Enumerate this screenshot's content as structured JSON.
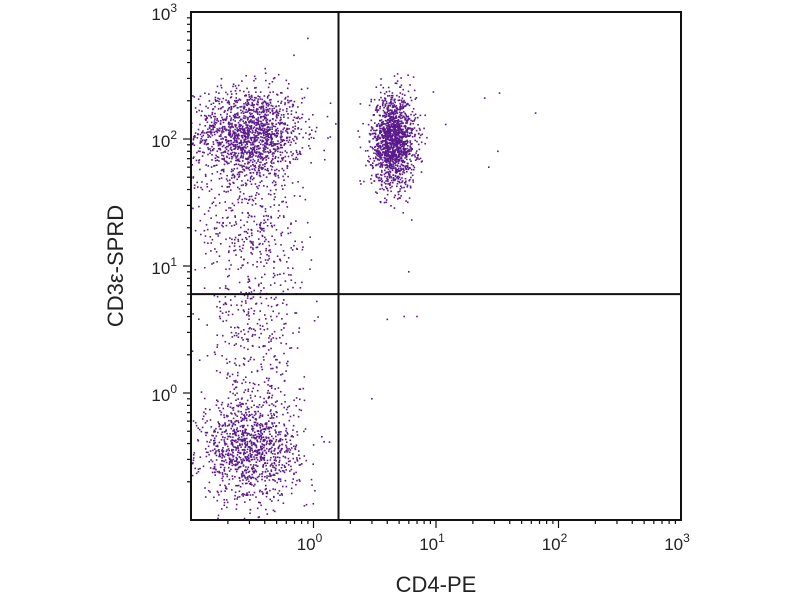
{
  "chart_data": {
    "type": "scatter",
    "title": "",
    "xlabel": "CD4-PE",
    "ylabel": "CD3ε-SPRD",
    "xscale": "log",
    "yscale": "log",
    "xlim": [
      0.1,
      1000
    ],
    "ylim": [
      0.1,
      1000
    ],
    "x_ticks": [
      {
        "value": 1,
        "base": "10",
        "exp": "0"
      },
      {
        "value": 10,
        "base": "10",
        "exp": "1"
      },
      {
        "value": 100,
        "base": "10",
        "exp": "2"
      },
      {
        "value": 1000,
        "base": "10",
        "exp": "3"
      }
    ],
    "y_ticks": [
      {
        "value": 1,
        "base": "10",
        "exp": "0"
      },
      {
        "value": 10,
        "base": "10",
        "exp": "1"
      },
      {
        "value": 100,
        "base": "10",
        "exp": "2"
      },
      {
        "value": 1000,
        "base": "10",
        "exp": "3"
      }
    ],
    "quadrant_gates": {
      "x": 1.6,
      "y": 6
    },
    "grid": false,
    "point_color": "#5a1a8c",
    "populations": [
      {
        "center": [
          0.3,
          110
        ],
        "spread": [
          0.22,
          0.18
        ],
        "count": 1500
      },
      {
        "center": [
          4.5,
          95
        ],
        "spread": [
          0.09,
          0.18
        ],
        "count": 1500
      },
      {
        "center": [
          0.3,
          0.35
        ],
        "spread": [
          0.2,
          0.2
        ],
        "count": 1100
      },
      {
        "center": [
          0.35,
          3
        ],
        "spread": [
          0.2,
          0.5
        ],
        "count": 450
      },
      {
        "center": [
          0.28,
          25
        ],
        "spread": [
          0.22,
          0.35
        ],
        "count": 350
      }
    ],
    "outliers": [
      [
        25,
        210
      ],
      [
        33,
        230
      ],
      [
        65,
        160
      ],
      [
        32,
        80
      ],
      [
        27,
        60
      ],
      [
        12,
        130
      ],
      [
        3,
        0.9
      ],
      [
        5.5,
        4
      ],
      [
        7,
        4
      ],
      [
        4,
        3.8
      ],
      [
        6,
        9
      ],
      [
        0.9,
        620
      ],
      [
        1.3,
        150
      ]
    ]
  }
}
